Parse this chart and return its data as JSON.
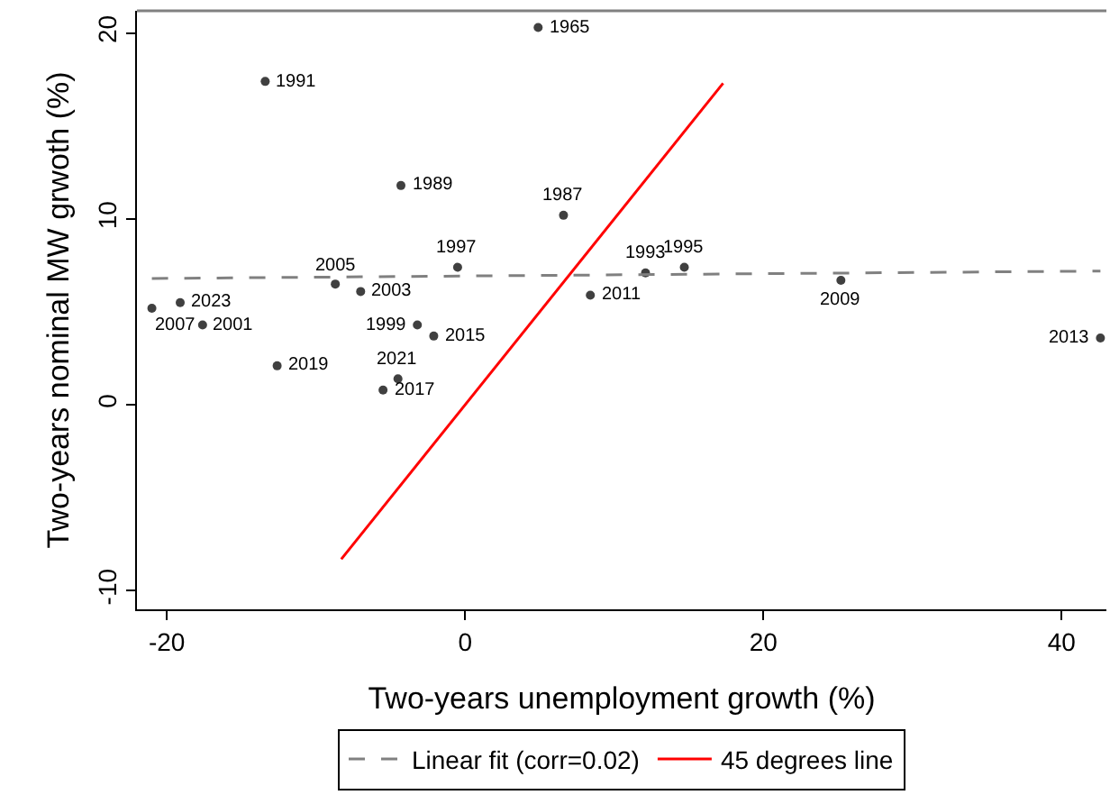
{
  "chart_data": {
    "type": "scatter",
    "xlabel": "Two-years unemployment growth (%)",
    "ylabel": "Two-years nominal MW grwoth (%)",
    "xlim": [
      -22,
      43
    ],
    "xticks": [
      -20,
      0,
      20,
      40
    ],
    "ylim": [
      -11,
      21.2
    ],
    "yticks": [
      -10,
      0,
      10,
      20
    ],
    "grid": false,
    "legend": "bottom",
    "marker": "circle",
    "series": [
      {
        "color": "#404040",
        "x": [
          4.9,
          -13.4,
          -4.3,
          6.6,
          -0.5,
          -8.7,
          -7.0,
          -19.1,
          -21.0,
          -17.6,
          -3.2,
          -2.1,
          -12.6,
          -4.5,
          -5.5,
          8.4,
          12.1,
          14.7,
          25.2,
          42.6
        ],
        "values": [
          20.3,
          17.4,
          11.8,
          10.2,
          7.4,
          6.5,
          6.1,
          5.5,
          5.2,
          4.3,
          4.3,
          3.7,
          2.1,
          1.4,
          0.8,
          5.9,
          7.1,
          7.4,
          6.7,
          3.6
        ]
      },
      {
        "type": "line",
        "name": "Linear fit (corr=0.02)",
        "color": "#808080",
        "line_style": "dashed",
        "marker": "none",
        "x": [
          -21,
          42.6
        ],
        "values": [
          6.8,
          7.2
        ]
      },
      {
        "type": "line",
        "name": "45 degrees line",
        "color": "#ff0000",
        "line_style": "solid",
        "marker": "none",
        "x": [
          -8.3,
          17.3
        ],
        "values": [
          -8.3,
          17.3
        ]
      }
    ],
    "annotations": [
      {
        "text": "1965",
        "x": 4.9,
        "y": 20.3
      },
      {
        "text": "1991",
        "x": -13.4,
        "y": 17.4
      },
      {
        "text": "1989",
        "x": -4.3,
        "y": 11.8
      },
      {
        "text": "1987",
        "x": 6.6,
        "y": 10.2
      },
      {
        "text": "1997",
        "x": -0.5,
        "y": 7.4
      },
      {
        "text": "2005",
        "x": -8.7,
        "y": 6.5
      },
      {
        "text": "2003",
        "x": -7.0,
        "y": 6.1
      },
      {
        "text": "2023",
        "x": -19.1,
        "y": 5.5
      },
      {
        "text": "2007",
        "x": -21.0,
        "y": 5.2
      },
      {
        "text": "2001",
        "x": -17.6,
        "y": 4.3
      },
      {
        "text": "1999",
        "x": -3.2,
        "y": 4.3
      },
      {
        "text": "2015",
        "x": -2.1,
        "y": 3.7
      },
      {
        "text": "2019",
        "x": -12.6,
        "y": 2.1
      },
      {
        "text": "2021",
        "x": -4.5,
        "y": 1.4
      },
      {
        "text": "2017",
        "x": -5.5,
        "y": 0.8
      },
      {
        "text": "2011",
        "x": 8.4,
        "y": 5.9
      },
      {
        "text": "1993",
        "x": 12.1,
        "y": 7.1
      },
      {
        "text": "1995",
        "x": 14.7,
        "y": 7.4
      },
      {
        "text": "2009",
        "x": 25.2,
        "y": 6.7
      },
      {
        "text": "2013",
        "x": 42.6,
        "y": 3.6
      }
    ]
  }
}
